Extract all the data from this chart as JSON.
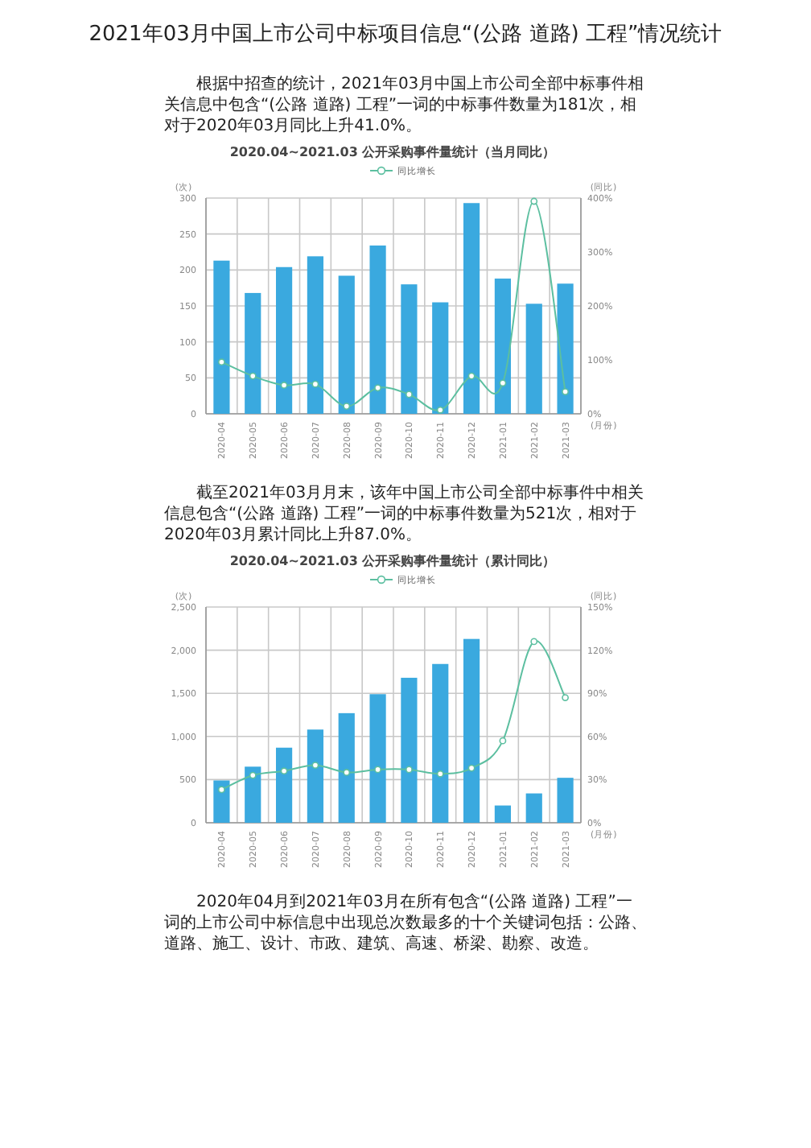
{
  "chart_data": [
    {
      "type": "bar",
      "title": "2020.04~2021.03 公开采购事件量统计（当月同比）",
      "legend": "top",
      "grid": true,
      "annotations": [
        "2021年03月中国上市公司中标项目信息“(公路 道路) 工程”情况统计",
        "根据中招查的统计，2021年03月中国上市公司全部中标事件相关信息中包含“(公路 道路) 工程”一词的中标事件数量为181次，相对于2020年03月同比上升41.0%。"
      ],
      "ylabel": "(次)",
      "y2label": "(同比)",
      "xlabel": "(月份)",
      "categories": [
        "2020-04",
        "2020-05",
        "2020-06",
        "2020-07",
        "2020-08",
        "2020-09",
        "2020-10",
        "2020-11",
        "2020-12",
        "2021-01",
        "2021-02",
        "2021-03"
      ],
      "ylim": [
        0,
        300
      ],
      "yticks": [
        0,
        50,
        100,
        150,
        200,
        250,
        300
      ],
      "y2lim": [
        0,
        400
      ],
      "y2ticks": [
        {
          "value": 0,
          "label": "0%"
        },
        {
          "value": 100,
          "label": "100%"
        },
        {
          "value": 200,
          "label": "200%"
        },
        {
          "value": 300,
          "label": "300%"
        },
        {
          "value": 400,
          "label": "400%"
        }
      ],
      "series": [
        {
          "color": "#3aa9df",
          "values": [
            213,
            168,
            204,
            219,
            192,
            234,
            180,
            155,
            293,
            188,
            153,
            181
          ]
        },
        {
          "type": "line",
          "axis": "y2",
          "name": "同比增长",
          "color": "#5cbfa0",
          "marker": "circle",
          "values": [
            96,
            70,
            53,
            55,
            14,
            48,
            36,
            7,
            70,
            57,
            394,
            41.0
          ]
        }
      ]
    },
    {
      "type": "bar",
      "title": "2020.04~2021.03 公开采购事件量统计（累计同比）",
      "legend": "top",
      "grid": true,
      "annotations": [
        "截至2021年03月月末，该年中国上市公司全部中标事件中相关信息包含“(公路 道路) 工程”一词的中标事件数量为521次，相对于2020年03月累计同比上升87.0%。",
        "2020年04月到2021年03月在所有包含“(公路 道路) 工程”一词的上市公司中标信息中出现总次数最多的十个关键词包括：公路、道路、施工、设计、市政、建筑、高速、桥梁、勘察、改造。"
      ],
      "ylabel": "(次)",
      "y2label": "(同比)",
      "xlabel": "(月份)",
      "categories": [
        "2020-04",
        "2020-05",
        "2020-06",
        "2020-07",
        "2020-08",
        "2020-09",
        "2020-10",
        "2020-11",
        "2020-12",
        "2021-01",
        "2021-02",
        "2021-03"
      ],
      "ylim": [
        0,
        2500
      ],
      "yticks": [
        0,
        {
          "value": 500,
          "label": "500"
        },
        {
          "value": 1000,
          "label": "1,000"
        },
        {
          "value": 1500,
          "label": "1,500"
        },
        {
          "value": 2000,
          "label": "2,000"
        },
        {
          "value": 2500,
          "label": "2,500"
        }
      ],
      "y2lim": [
        0,
        150
      ],
      "y2ticks": [
        {
          "value": 0,
          "label": "0%"
        },
        {
          "value": 30,
          "label": "30%"
        },
        {
          "value": 60,
          "label": "60%"
        },
        {
          "value": 90,
          "label": "90%"
        },
        {
          "value": 120,
          "label": "120%"
        },
        {
          "value": 150,
          "label": "150%"
        }
      ],
      "series": [
        {
          "color": "#3aa9df",
          "values": [
            490,
            650,
            870,
            1080,
            1270,
            1490,
            1680,
            1840,
            2130,
            200,
            340,
            521
          ]
        },
        {
          "type": "line",
          "axis": "y2",
          "name": "同比增长",
          "color": "#5cbfa0",
          "marker": "circle",
          "values": [
            23,
            33,
            36,
            40,
            35,
            37,
            37,
            34,
            38,
            57,
            126,
            87.0
          ]
        }
      ]
    }
  ]
}
